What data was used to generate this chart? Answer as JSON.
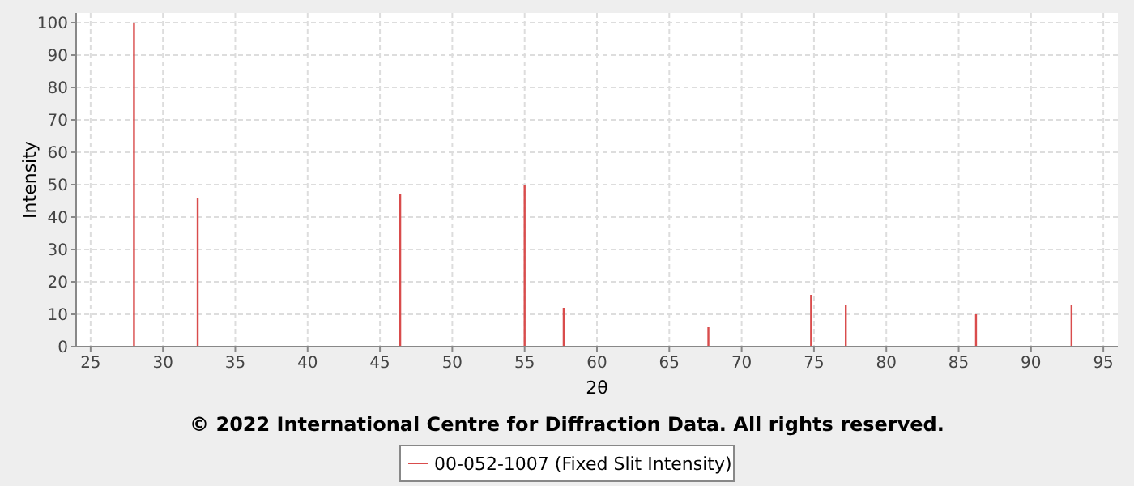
{
  "chart_data": {
    "type": "bar",
    "xlabel": "2θ",
    "ylabel": "Intensity",
    "annotations": [
      "© 2022 International Centre for Diffraction Data. All rights reserved."
    ],
    "x": [
      28.0,
      32.4,
      46.4,
      55.0,
      57.7,
      67.7,
      74.8,
      77.2,
      86.2,
      92.8
    ],
    "series": [
      {
        "name": "00-052-1007 (Fixed Slit Intensity)",
        "color": "#d94c4c",
        "values": [
          100,
          46,
          47,
          50,
          12,
          6,
          16,
          13,
          10,
          13
        ]
      }
    ],
    "xlim": [
      24,
      96
    ],
    "xticks": [
      25,
      30,
      35,
      40,
      45,
      50,
      55,
      60,
      65,
      70,
      75,
      80,
      85,
      90,
      95
    ],
    "ylim": [
      0,
      103
    ],
    "yticks": [
      0,
      10,
      20,
      30,
      40,
      50,
      60,
      70,
      80,
      90,
      100
    ],
    "grid": true,
    "legend": "bottom"
  }
}
